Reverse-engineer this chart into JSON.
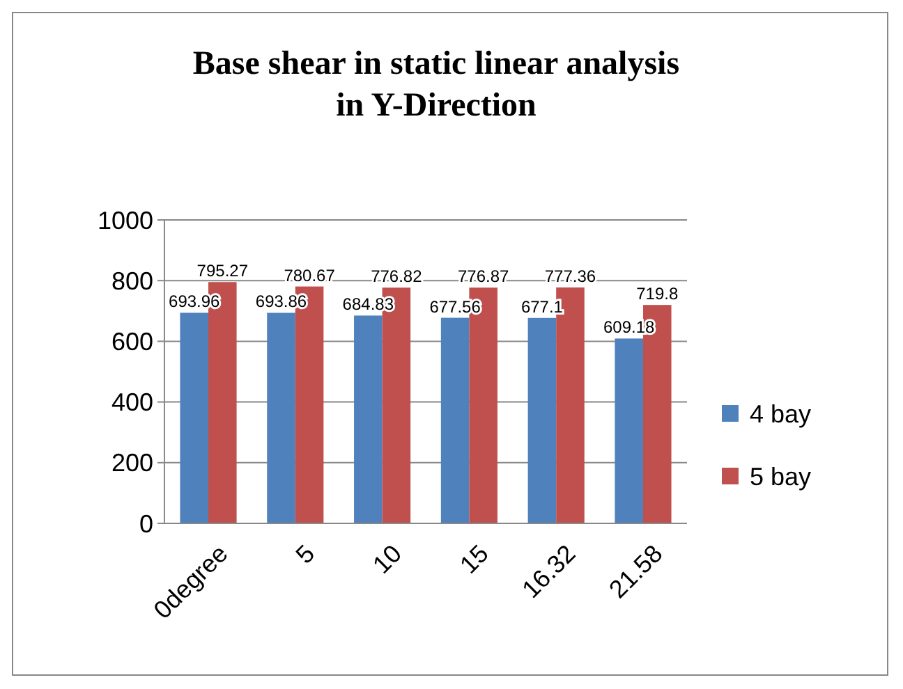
{
  "chart_data": {
    "type": "bar",
    "title": "Base shear in static linear analysis in Y-Direction",
    "categories": [
      "0degree",
      "5",
      "10",
      "15",
      "16.32",
      "21.58"
    ],
    "series": [
      {
        "name": "4 bay",
        "color": "#4f81bd",
        "values": [
          693.96,
          693.86,
          684.83,
          677.56,
          677.1,
          609.18
        ]
      },
      {
        "name": "5 bay",
        "color": "#c0504d",
        "values": [
          795.27,
          780.67,
          776.82,
          776.87,
          777.36,
          719.8
        ]
      }
    ],
    "ylim": [
      0,
      1000
    ],
    "yticks": [
      0,
      200,
      400,
      600,
      800,
      1000
    ],
    "grid": "y",
    "legend": "right",
    "data_labels": true
  }
}
